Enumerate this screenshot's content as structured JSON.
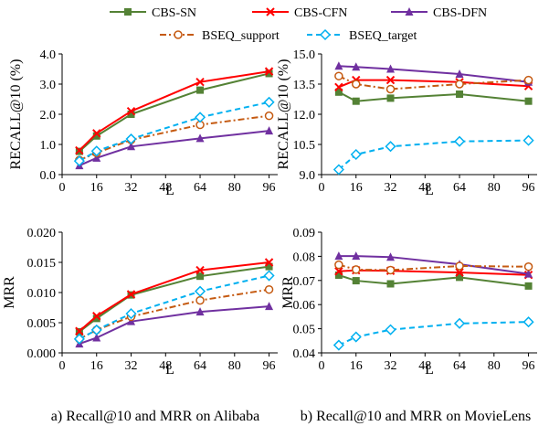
{
  "legend": {
    "placement": "top",
    "entries": [
      "CBS-SN",
      "CBS-CFN",
      "CBS-DFN",
      "BSEQ_support",
      "BSEQ_target"
    ]
  },
  "captions": [
    "a) Recall@10 and MRR on Alibaba",
    "b) Recall@10 and MRR on MovieLens"
  ],
  "series_style": [
    {
      "name": "CBS-SN",
      "color": "#548235",
      "dash": "solid",
      "marker": "square"
    },
    {
      "name": "CBS-CFN",
      "color": "#ff0000",
      "dash": "solid",
      "marker": "x"
    },
    {
      "name": "CBS-DFN",
      "color": "#7030a0",
      "dash": "solid",
      "marker": "triangle"
    },
    {
      "name": "BSEQ_support",
      "color": "#c55a11",
      "dash": "dashdot",
      "marker": "circle-open"
    },
    {
      "name": "BSEQ_target",
      "color": "#00b0f0",
      "dash": "dashed",
      "marker": "diamond-open"
    }
  ],
  "chart_data": [
    {
      "type": "line",
      "panel": "a-top",
      "xlabel": "L",
      "ylabel": "RECALL@10 (%)",
      "xlim": [
        0,
        100
      ],
      "ylim": [
        0,
        4
      ],
      "xticks": [
        "0",
        "16",
        "32",
        "48",
        "64",
        "80",
        "96"
      ],
      "yticks": [
        "0.0",
        "1.0",
        "2.0",
        "3.0",
        "4.0"
      ],
      "x": [
        8,
        16,
        32,
        64,
        96
      ],
      "series": [
        {
          "name": "CBS-SN",
          "values": [
            0.77,
            1.28,
            2.0,
            2.8,
            3.35
          ]
        },
        {
          "name": "CBS-CFN",
          "values": [
            0.8,
            1.37,
            2.1,
            3.07,
            3.42
          ]
        },
        {
          "name": "CBS-DFN",
          "values": [
            0.3,
            0.55,
            0.93,
            1.2,
            1.45
          ]
        },
        {
          "name": "BSEQ_support",
          "values": [
            0.48,
            0.72,
            1.15,
            1.65,
            1.95
          ]
        },
        {
          "name": "BSEQ_target",
          "values": [
            0.45,
            0.78,
            1.18,
            1.9,
            2.4
          ]
        }
      ]
    },
    {
      "type": "line",
      "panel": "b-top",
      "xlabel": "L",
      "ylabel": "RECALL@10 (%)",
      "xlim": [
        0,
        100
      ],
      "ylim": [
        9,
        15
      ],
      "xticks": [
        "0",
        "16",
        "32",
        "48",
        "64",
        "80",
        "96"
      ],
      "yticks": [
        "9.0",
        "10.5",
        "12.0",
        "13.5",
        "15.0"
      ],
      "x": [
        8,
        16,
        32,
        64,
        96
      ],
      "series": [
        {
          "name": "CBS-SN",
          "values": [
            13.1,
            12.65,
            12.8,
            13.0,
            12.65
          ]
        },
        {
          "name": "CBS-CFN",
          "values": [
            13.35,
            13.7,
            13.7,
            13.6,
            13.4
          ]
        },
        {
          "name": "CBS-DFN",
          "values": [
            14.4,
            14.35,
            14.25,
            14.0,
            13.6
          ]
        },
        {
          "name": "BSEQ_support",
          "values": [
            13.9,
            13.5,
            13.25,
            13.5,
            13.7
          ]
        },
        {
          "name": "BSEQ_target",
          "values": [
            9.25,
            10.0,
            10.4,
            10.65,
            10.7
          ]
        }
      ]
    },
    {
      "type": "line",
      "panel": "a-bottom",
      "xlabel": "L",
      "ylabel": "MRR",
      "xlim": [
        0,
        100
      ],
      "ylim": [
        0,
        0.02
      ],
      "xticks": [
        "0",
        "16",
        "32",
        "48",
        "64",
        "80",
        "96"
      ],
      "yticks": [
        "0.000",
        "0.005",
        "0.010",
        "0.015",
        "0.020"
      ],
      "x": [
        8,
        16,
        32,
        64,
        96
      ],
      "series": [
        {
          "name": "CBS-SN",
          "values": [
            0.0035,
            0.0057,
            0.0096,
            0.0127,
            0.0143
          ]
        },
        {
          "name": "CBS-CFN",
          "values": [
            0.0036,
            0.0061,
            0.0097,
            0.0137,
            0.015
          ]
        },
        {
          "name": "CBS-DFN",
          "values": [
            0.0015,
            0.0025,
            0.0052,
            0.0068,
            0.0077
          ]
        },
        {
          "name": "BSEQ_support",
          "values": [
            0.0023,
            0.0038,
            0.006,
            0.0087,
            0.0105
          ]
        },
        {
          "name": "BSEQ_target",
          "values": [
            0.0023,
            0.0038,
            0.0065,
            0.0102,
            0.0128
          ]
        }
      ]
    },
    {
      "type": "line",
      "panel": "b-bottom",
      "xlabel": "L",
      "ylabel": "MRR",
      "xlim": [
        0,
        100
      ],
      "ylim": [
        0.04,
        0.09
      ],
      "xticks": [
        "0",
        "16",
        "32",
        "48",
        "64",
        "80",
        "96"
      ],
      "yticks": [
        "0.04",
        "0.05",
        "0.06",
        "0.07",
        "0.08",
        "0.09"
      ],
      "x": [
        8,
        16,
        32,
        64,
        96
      ],
      "series": [
        {
          "name": "CBS-SN",
          "values": [
            0.0722,
            0.0699,
            0.0686,
            0.0713,
            0.0677
          ]
        },
        {
          "name": "CBS-CFN",
          "values": [
            0.0738,
            0.0742,
            0.074,
            0.0733,
            0.0723
          ]
        },
        {
          "name": "CBS-DFN",
          "values": [
            0.0801,
            0.0801,
            0.0797,
            0.0767,
            0.0727
          ]
        },
        {
          "name": "BSEQ_support",
          "values": [
            0.0765,
            0.0745,
            0.0743,
            0.076,
            0.0757
          ]
        },
        {
          "name": "BSEQ_target",
          "values": [
            0.0432,
            0.0466,
            0.0496,
            0.0522,
            0.0528
          ]
        }
      ]
    }
  ]
}
